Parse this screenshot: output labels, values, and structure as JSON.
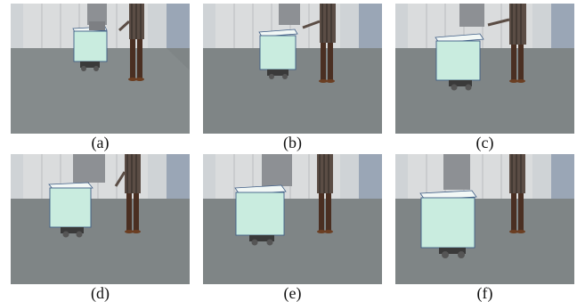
{
  "figure": {
    "panels": [
      {
        "id": "a",
        "caption": "(a)"
      },
      {
        "id": "b",
        "caption": "(b)"
      },
      {
        "id": "c",
        "caption": "(c)"
      },
      {
        "id": "d",
        "caption": "(d)"
      },
      {
        "id": "e",
        "caption": "(e)"
      },
      {
        "id": "f",
        "caption": "(f)"
      }
    ]
  },
  "colors": {
    "wall": "#cfd3d6",
    "cabinet": "#d9dcdd",
    "floor": "#7f8586",
    "box_face": "#c9ecdf",
    "box_top": "#f2f8f6",
    "box_edge": "#3f5e86",
    "shirt_gray": "#8d9094",
    "shirt_stripe": "#5b4d45",
    "pants": "#4a2f22"
  },
  "icons": [
    "wheeled-robot-with-box",
    "person-standing"
  ]
}
